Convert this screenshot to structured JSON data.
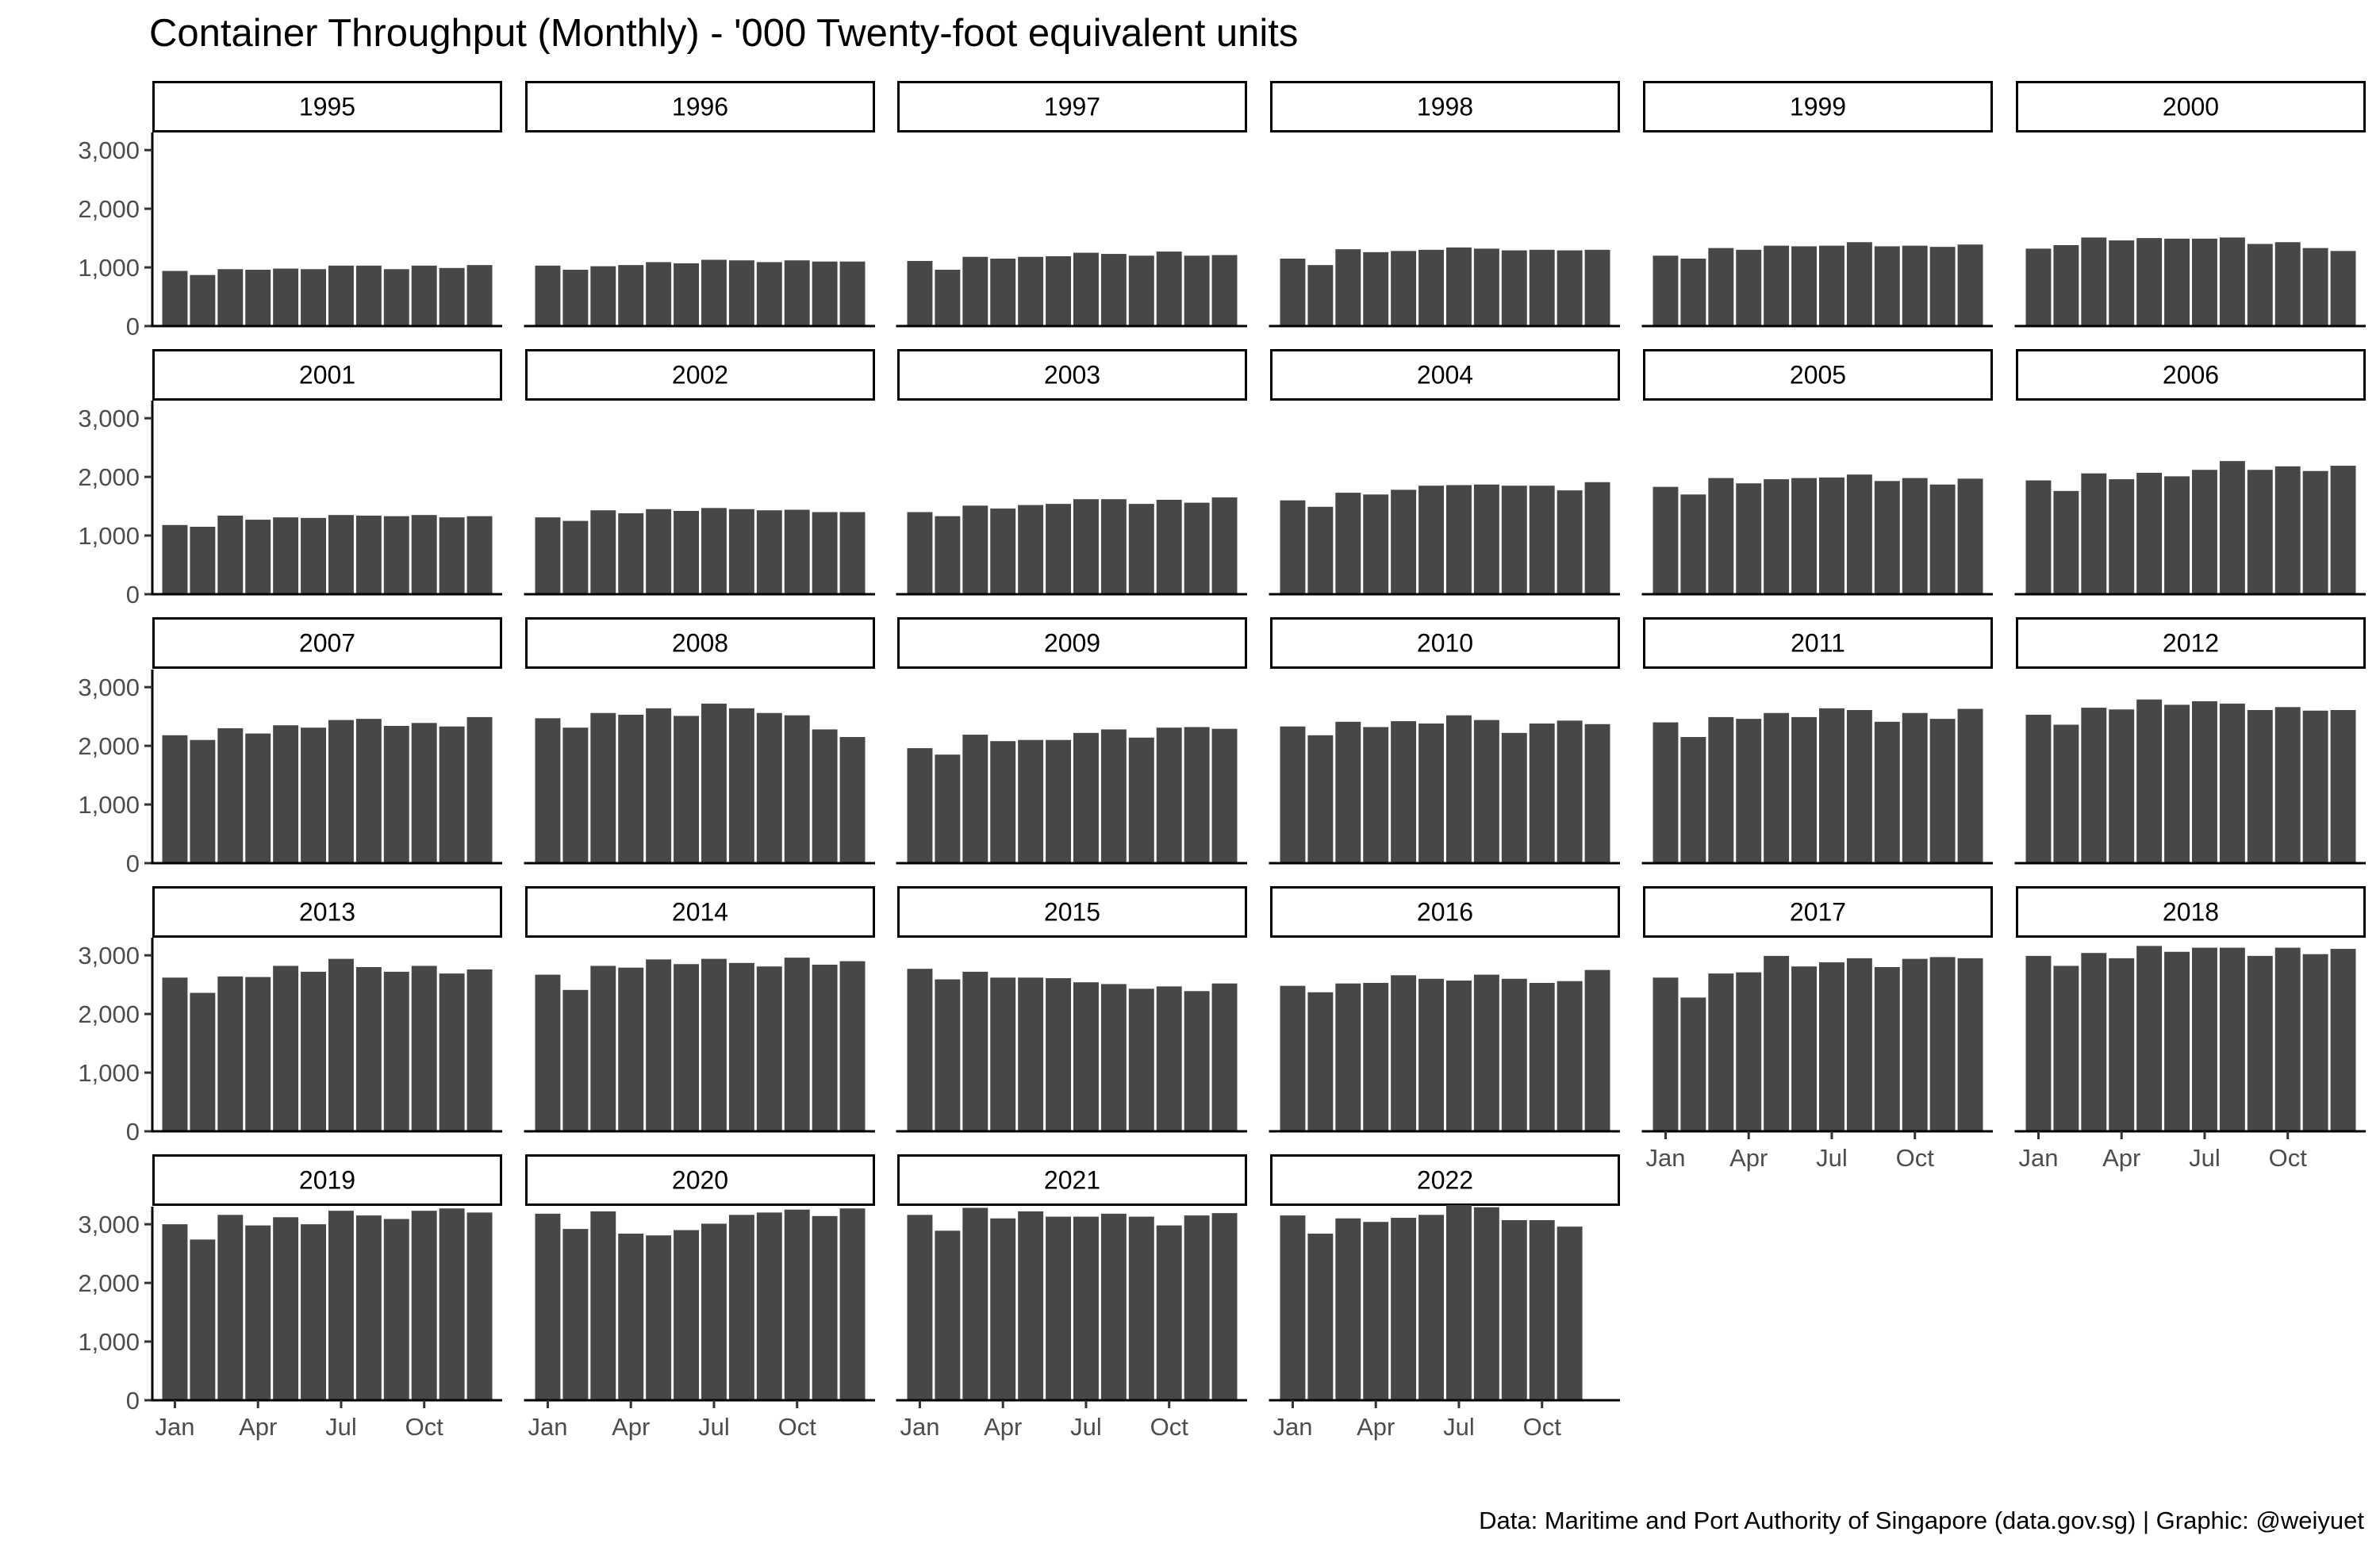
{
  "chart_data": {
    "type": "bar",
    "title": "Container Throughput (Monthly) - '000 Twenty-foot equivalent units",
    "caption": "Data: Maritime and Port Authority of Singapore (data.gov.sg) | Graphic: @weiyuet",
    "facet_by": "year",
    "months": [
      "Jan",
      "Feb",
      "Mar",
      "Apr",
      "May",
      "Jun",
      "Jul",
      "Aug",
      "Sep",
      "Oct",
      "Nov",
      "Dec"
    ],
    "x_tick_labels": [
      "Jan",
      "Apr",
      "Jul",
      "Oct"
    ],
    "y_ticks": [
      "0",
      "1,000",
      "2,000",
      "3,000"
    ],
    "y_tick_values": [
      0,
      1000,
      2000,
      3000
    ],
    "ylim": [
      0,
      3300
    ],
    "bar_color": "#474747",
    "grid": false,
    "panels": [
      {
        "year": "1995",
        "values": [
          940,
          870,
          970,
          960,
          980,
          970,
          1030,
          1030,
          970,
          1030,
          990,
          1040
        ]
      },
      {
        "year": "1996",
        "values": [
          1030,
          960,
          1020,
          1040,
          1090,
          1070,
          1130,
          1120,
          1090,
          1120,
          1100,
          1100
        ]
      },
      {
        "year": "1997",
        "values": [
          1110,
          960,
          1180,
          1150,
          1180,
          1190,
          1250,
          1230,
          1200,
          1270,
          1200,
          1210
        ]
      },
      {
        "year": "1998",
        "values": [
          1150,
          1040,
          1310,
          1260,
          1280,
          1300,
          1340,
          1320,
          1290,
          1300,
          1290,
          1300
        ]
      },
      {
        "year": "1999",
        "values": [
          1200,
          1150,
          1330,
          1300,
          1370,
          1360,
          1370,
          1430,
          1360,
          1370,
          1350,
          1390
        ]
      },
      {
        "year": "2000",
        "values": [
          1320,
          1380,
          1510,
          1460,
          1500,
          1490,
          1490,
          1510,
          1400,
          1430,
          1330,
          1280
        ]
      },
      {
        "year": "2001",
        "values": [
          1180,
          1150,
          1340,
          1270,
          1310,
          1300,
          1350,
          1340,
          1330,
          1350,
          1310,
          1330
        ]
      },
      {
        "year": "2002",
        "values": [
          1310,
          1250,
          1430,
          1380,
          1450,
          1420,
          1470,
          1450,
          1430,
          1440,
          1400,
          1400
        ]
      },
      {
        "year": "2003",
        "values": [
          1400,
          1330,
          1510,
          1460,
          1520,
          1540,
          1620,
          1620,
          1540,
          1610,
          1560,
          1650
        ]
      },
      {
        "year": "2004",
        "values": [
          1600,
          1490,
          1730,
          1700,
          1780,
          1850,
          1860,
          1870,
          1850,
          1850,
          1770,
          1910
        ]
      },
      {
        "year": "2005",
        "values": [
          1830,
          1700,
          1980,
          1890,
          1960,
          1980,
          1990,
          2040,
          1930,
          1980,
          1870,
          1970
        ]
      },
      {
        "year": "2006",
        "values": [
          1940,
          1760,
          2060,
          1960,
          2070,
          2010,
          2120,
          2270,
          2120,
          2180,
          2100,
          2190
        ]
      },
      {
        "year": "2007",
        "values": [
          2180,
          2100,
          2300,
          2210,
          2350,
          2310,
          2440,
          2460,
          2340,
          2390,
          2330,
          2490
        ]
      },
      {
        "year": "2008",
        "values": [
          2470,
          2310,
          2560,
          2530,
          2640,
          2510,
          2720,
          2640,
          2560,
          2520,
          2280,
          2150
        ]
      },
      {
        "year": "2009",
        "values": [
          1960,
          1850,
          2190,
          2080,
          2100,
          2100,
          2220,
          2280,
          2140,
          2310,
          2320,
          2290
        ]
      },
      {
        "year": "2010",
        "values": [
          2330,
          2180,
          2410,
          2320,
          2420,
          2380,
          2520,
          2440,
          2220,
          2380,
          2430,
          2370
        ]
      },
      {
        "year": "2011",
        "values": [
          2400,
          2150,
          2490,
          2460,
          2560,
          2490,
          2640,
          2610,
          2410,
          2560,
          2460,
          2630
        ]
      },
      {
        "year": "2012",
        "values": [
          2530,
          2360,
          2650,
          2620,
          2790,
          2700,
          2760,
          2720,
          2610,
          2660,
          2600,
          2610
        ]
      },
      {
        "year": "2013",
        "values": [
          2620,
          2360,
          2640,
          2630,
          2820,
          2720,
          2940,
          2800,
          2720,
          2820,
          2690,
          2760
        ]
      },
      {
        "year": "2014",
        "values": [
          2670,
          2410,
          2820,
          2790,
          2930,
          2850,
          2940,
          2870,
          2810,
          2960,
          2840,
          2900
        ]
      },
      {
        "year": "2015",
        "values": [
          2770,
          2590,
          2720,
          2620,
          2620,
          2610,
          2540,
          2510,
          2430,
          2470,
          2390,
          2520
        ]
      },
      {
        "year": "2016",
        "values": [
          2480,
          2370,
          2520,
          2530,
          2660,
          2600,
          2570,
          2670,
          2600,
          2530,
          2560,
          2750
        ]
      },
      {
        "year": "2017",
        "values": [
          2620,
          2280,
          2690,
          2710,
          2990,
          2810,
          2880,
          2950,
          2800,
          2940,
          2970,
          2950
        ]
      },
      {
        "year": "2018",
        "values": [
          2990,
          2820,
          3040,
          2950,
          3160,
          3060,
          3130,
          3130,
          2990,
          3130,
          3020,
          3110
        ]
      },
      {
        "year": "2019",
        "values": [
          3000,
          2740,
          3160,
          2980,
          3120,
          3000,
          3230,
          3150,
          3090,
          3230,
          3270,
          3200
        ]
      },
      {
        "year": "2020",
        "values": [
          3180,
          2920,
          3220,
          2840,
          2810,
          2900,
          3010,
          3160,
          3200,
          3250,
          3140,
          3270
        ]
      },
      {
        "year": "2021",
        "values": [
          3160,
          2890,
          3280,
          3100,
          3220,
          3130,
          3130,
          3180,
          3130,
          2980,
          3150,
          3190
        ]
      },
      {
        "year": "2022",
        "values": [
          3150,
          2840,
          3100,
          3040,
          3110,
          3160,
          3330,
          3290,
          3070,
          3070,
          2960
        ]
      }
    ]
  }
}
